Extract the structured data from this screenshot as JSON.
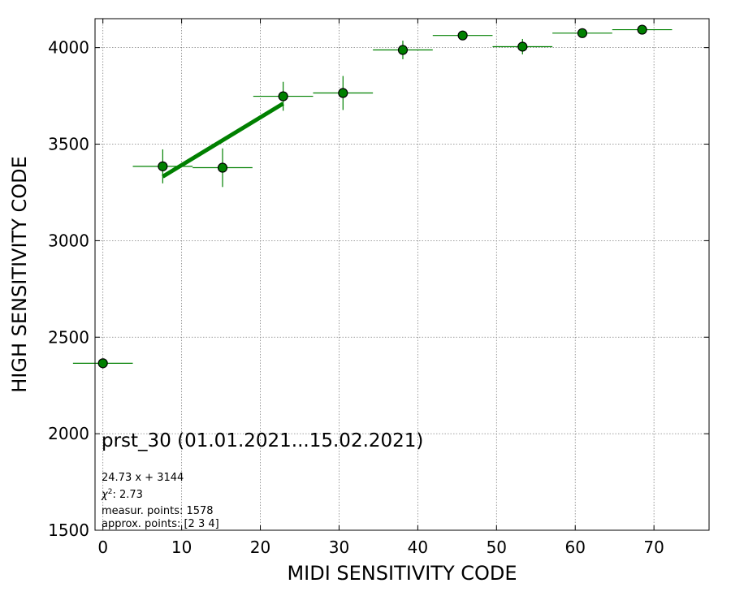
{
  "chart_data": {
    "type": "scatter",
    "title": "prst_30 (01.01.2021...15.02.2021)",
    "xlabel": "MIDI SENSITIVITY CODE",
    "ylabel": "HIGH SENSITIVITY CODE",
    "xlim": [
      -1,
      77
    ],
    "ylim": [
      1500,
      4150
    ],
    "xticks": [
      0,
      10,
      20,
      30,
      40,
      50,
      60,
      70
    ],
    "yticks": [
      1500,
      2000,
      2500,
      3000,
      3500,
      4000
    ],
    "grid": true,
    "colors": {
      "marker": "#008000",
      "edge": "#000000",
      "fit": "#008000",
      "grid": "#808080"
    },
    "series": [
      {
        "x": [
          0,
          7.6,
          15.2,
          22.9,
          30.5,
          38.1,
          45.7,
          53.3,
          60.9,
          68.5
        ],
        "y": [
          2365,
          3385,
          3378,
          3748,
          3765,
          3988,
          4063,
          4005,
          4075,
          4093
        ],
        "xerr": [
          3.8,
          3.8,
          3.8,
          3.8,
          3.8,
          3.8,
          3.8,
          3.8,
          3.8,
          3.8
        ],
        "yerr": [
          0,
          88,
          100,
          75,
          88,
          48,
          0,
          40,
          0,
          0
        ]
      }
    ],
    "fit": {
      "x": [
        7.6,
        22.9
      ],
      "slope": 24.73,
      "intercept": 3144
    },
    "annotations": {
      "equation": "24.73 x + 3144",
      "chi2_value": ": 2.73",
      "measurement_points": "measur. points: 1578",
      "approx_points": "approx. points: [2 3 4]"
    }
  }
}
